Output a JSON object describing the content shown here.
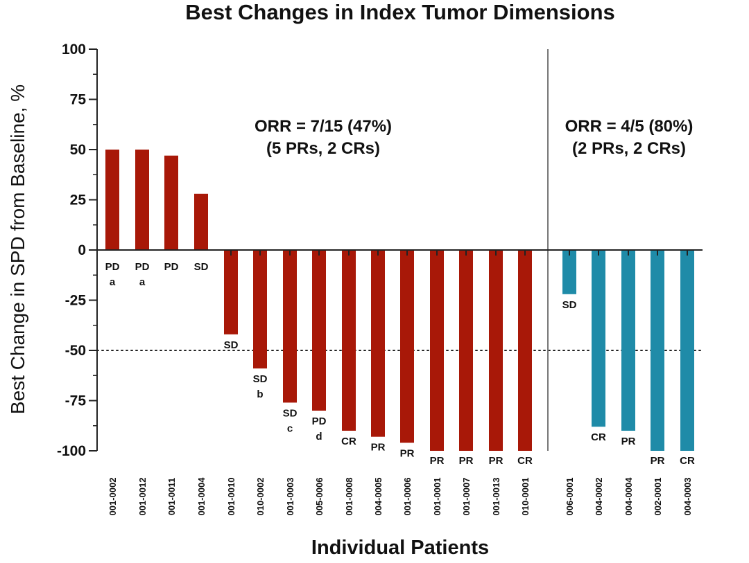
{
  "chart_data": {
    "type": "bar",
    "title": "Best Changes in Index Tumor Dimensions",
    "xlabel": "Individual Patients",
    "ylabel": "Best Change in SPD from Baseline, %",
    "ylim": [
      -100,
      100
    ],
    "yticks": [
      "100",
      "75",
      "50",
      "25",
      "0",
      "-25",
      "-50",
      "-75",
      "-100"
    ],
    "reference_line": {
      "value": -50,
      "style": "dotted"
    },
    "colors": {
      "group1": "#a81808",
      "group2": "#1f8ba8",
      "axis": "#222222"
    },
    "groups": [
      {
        "name": "group1",
        "orr_line1": "ORR = 7/15 (47%)",
        "orr_line2": "(5 PRs, 2 CRs)",
        "patients": [
          {
            "id": "001-0002",
            "value": 50,
            "response": "PD",
            "note": "a"
          },
          {
            "id": "001-0012",
            "value": 50,
            "response": "PD",
            "note": "a"
          },
          {
            "id": "001-0011",
            "value": 47,
            "response": "PD",
            "note": ""
          },
          {
            "id": "001-0004",
            "value": 28,
            "response": "SD",
            "note": ""
          },
          {
            "id": "001-0010",
            "value": -42,
            "response": "SD",
            "note": ""
          },
          {
            "id": "010-0002",
            "value": -59,
            "response": "SD",
            "note": "b"
          },
          {
            "id": "001-0003",
            "value": -76,
            "response": "SD",
            "note": "c"
          },
          {
            "id": "005-0006",
            "value": -80,
            "response": "PD",
            "note": "d"
          },
          {
            "id": "001-0008",
            "value": -90,
            "response": "CR",
            "note": ""
          },
          {
            "id": "004-0005",
            "value": -93,
            "response": "PR",
            "note": ""
          },
          {
            "id": "001-0006",
            "value": -96,
            "response": "PR",
            "note": ""
          },
          {
            "id": "001-0001",
            "value": -100,
            "response": "PR",
            "note": ""
          },
          {
            "id": "001-0007",
            "value": -100,
            "response": "PR",
            "note": ""
          },
          {
            "id": "001-0013",
            "value": -100,
            "response": "PR",
            "note": ""
          },
          {
            "id": "010-0001",
            "value": -100,
            "response": "CR",
            "note": ""
          }
        ]
      },
      {
        "name": "group2",
        "orr_line1": "ORR = 4/5 (80%)",
        "orr_line2": "(2 PRs, 2 CRs)",
        "patients": [
          {
            "id": "006-0001",
            "value": -22,
            "response": "SD",
            "note": ""
          },
          {
            "id": "004-0002",
            "value": -88,
            "response": "CR",
            "note": ""
          },
          {
            "id": "004-0004",
            "value": -90,
            "response": "PR",
            "note": ""
          },
          {
            "id": "002-0001",
            "value": -100,
            "response": "PR",
            "note": ""
          },
          {
            "id": "004-0003",
            "value": -100,
            "response": "CR",
            "note": ""
          }
        ]
      }
    ]
  }
}
